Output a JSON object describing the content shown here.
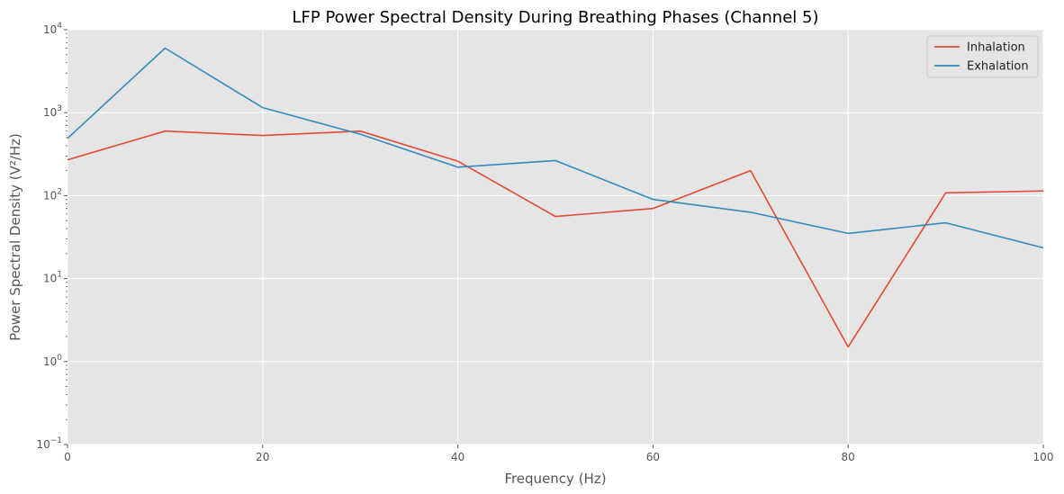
{
  "chart_data": {
    "type": "line",
    "title": "LFP Power Spectral Density During Breathing Phases (Channel 5)",
    "xlabel": "Frequency (Hz)",
    "ylabel": "Power Spectral Density (V²/Hz)",
    "x": [
      0,
      10,
      20,
      30,
      40,
      50,
      60,
      70,
      80,
      90,
      100
    ],
    "xlim": [
      0,
      100
    ],
    "ylim": [
      0.1,
      10000
    ],
    "yscale": "log",
    "x_ticks": [
      "0",
      "20",
      "40",
      "60",
      "80",
      "100"
    ],
    "y_ticks": [
      {
        "base": "10",
        "exp": "−1"
      },
      {
        "base": "10",
        "exp": "0"
      },
      {
        "base": "10",
        "exp": "1"
      },
      {
        "base": "10",
        "exp": "2"
      },
      {
        "base": "10",
        "exp": "3"
      },
      {
        "base": "10",
        "exp": "4"
      }
    ],
    "grid": true,
    "legend_position": "top-right",
    "background_color": "#e5e5e5",
    "series": [
      {
        "name": "Inhalation",
        "color": "#e24a33",
        "values": [
          270,
          600,
          530,
          600,
          260,
          56,
          70,
          200,
          1.5,
          108,
          114
        ]
      },
      {
        "name": "Exhalation",
        "color": "#348abd",
        "values": [
          490,
          6000,
          1150,
          550,
          220,
          265,
          90,
          63,
          35,
          47,
          23.5
        ]
      }
    ]
  }
}
